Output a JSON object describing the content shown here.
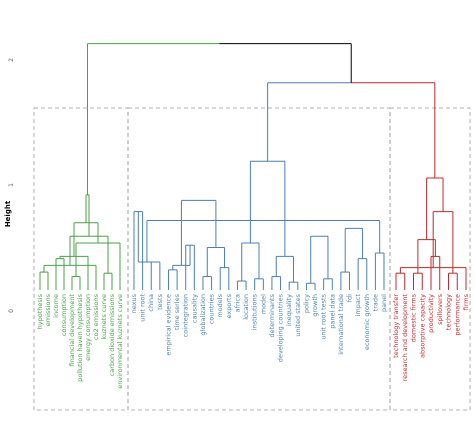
{
  "chart_data": {
    "type": "dendrogram",
    "ylabel": "Height",
    "y_ticks": [
      "0",
      "1",
      "2"
    ],
    "ylim": [
      0,
      2.3
    ],
    "grid": false,
    "colors": {
      "root": "#000000",
      "cluster_1": "#4aa04a",
      "cluster_2": "#4a7fb0",
      "cluster_3": "#c0282c",
      "box": "#9a9a9a"
    },
    "clusters": [
      {
        "id": "cluster_1",
        "leaves": [
          "hypothesis",
          "emissions",
          "income",
          "consumption",
          "financial development",
          "pollution haven hypothesis",
          "energy consumption",
          "co2 emissions",
          "kuznets curve",
          "carbon dioxide emissions",
          "environmental kuznets curve"
        ]
      },
      {
        "id": "cluster_2",
        "leaves": [
          "nexus",
          "unit root",
          "china",
          "tests",
          "empirical evidence",
          "time series",
          "cointegration",
          "causality",
          "globalization",
          "countries",
          "models",
          "exports",
          "africa",
          "location",
          "institutions",
          "model",
          "determinants",
          "developing countries",
          "inequality",
          "united states",
          "policy",
          "growth",
          "unit root tests",
          "panel data",
          "international trade",
          "fdi",
          "impact",
          "economic growth",
          "trade",
          "panel"
        ]
      },
      {
        "id": "cluster_3",
        "leaves": [
          "technology transfer",
          "research and development",
          "domestic firms",
          "absorptive capacity",
          "productivity",
          "spillovers",
          "technology",
          "performance",
          "firms"
        ]
      }
    ],
    "merges": [
      {
        "cluster": "cluster_1",
        "a": 0,
        "b": 1,
        "height": 0.16
      },
      {
        "cluster": "cluster_1",
        "a": 2,
        "b": 3,
        "height": 0.28
      },
      {
        "cluster": "cluster_1",
        "a": 4,
        "b": 5,
        "height": 0.12
      },
      {
        "cluster": "cluster_1",
        "a": 8,
        "b": 9,
        "height": 0.15
      },
      {
        "cluster": "cluster_1",
        "a": 7,
        "b": 11,
        "height": 0.22
      },
      {
        "cluster": "cluster_1",
        "a": 6,
        "b": 12,
        "height": 0.3
      },
      {
        "cluster": "cluster_1",
        "a": 13,
        "b": 10,
        "height": 0.42
      },
      {
        "cluster": "cluster_1",
        "a": 14,
        "b": 15,
        "height": 0.48
      },
      {
        "cluster": "cluster_1",
        "a": 16,
        "b": 17,
        "height": 0.6
      },
      {
        "cluster": "cluster_1",
        "a": 18,
        "b": 19,
        "height": 0.85
      },
      {
        "cluster": "cluster_2",
        "a": 0,
        "b": 1,
        "height": 0.7
      },
      {
        "cluster": "cluster_2",
        "a": 2,
        "b": 3,
        "height": 0.25
      },
      {
        "cluster": "cluster_2",
        "a": 4,
        "b": 5,
        "height": 0.18
      },
      {
        "cluster": "cluster_2",
        "a": 6,
        "b": 7,
        "height": 0.4
      },
      {
        "cluster": "cluster_2",
        "a": 8,
        "b": 9,
        "height": 0.12
      },
      {
        "cluster": "cluster_2",
        "a": 10,
        "b": 11,
        "height": 0.2
      },
      {
        "cluster": "cluster_2",
        "a": 12,
        "b": 13,
        "height": 0.08
      },
      {
        "cluster": "cluster_2",
        "a": 14,
        "b": 15,
        "height": 0.1
      },
      {
        "cluster": "cluster_2",
        "a": 16,
        "b": 17,
        "height": 0.12
      },
      {
        "cluster": "cluster_2",
        "a": 18,
        "b": 19,
        "height": 0.07
      },
      {
        "cluster": "cluster_2",
        "a": 20,
        "b": 21,
        "height": 0.06
      },
      {
        "cluster": "cluster_2",
        "a": 22,
        "b": 23,
        "height": 0.1
      },
      {
        "cluster": "cluster_2",
        "a": 24,
        "b": 25,
        "height": 0.16
      },
      {
        "cluster": "cluster_2",
        "a": 26,
        "b": 27,
        "height": 0.28
      },
      {
        "cluster": "cluster_2",
        "a": 28,
        "b": 29,
        "height": 0.33
      },
      {
        "cluster": "cluster_2",
        "a": 30,
        "b": 31,
        "height": 0.25
      },
      {
        "cluster": "cluster_2",
        "a": 32,
        "b": 33,
        "height": 0.22
      },
      {
        "cluster": "cluster_2",
        "a": 34,
        "b": 35,
        "height": 0.38
      },
      {
        "cluster": "cluster_2",
        "a": 36,
        "b": 37,
        "height": 0.42
      },
      {
        "cluster": "cluster_2",
        "a": 38,
        "b": 39,
        "height": 0.3
      },
      {
        "cluster": "cluster_2",
        "a": 40,
        "b": 41,
        "height": 0.48
      },
      {
        "cluster": "cluster_2",
        "a": 42,
        "b": 43,
        "height": 0.55
      },
      {
        "cluster": "cluster_2",
        "a": 44,
        "b": 45,
        "height": 0.62
      },
      {
        "cluster": "cluster_2",
        "a": 46,
        "b": 47,
        "height": 0.8
      },
      {
        "cluster": "cluster_2",
        "a": 48,
        "b": 49,
        "height": 1.15
      },
      {
        "cluster": "cluster_3",
        "a": 0,
        "b": 1,
        "height": 0.15
      },
      {
        "cluster": "cluster_3",
        "a": 2,
        "b": 3,
        "height": 0.15
      },
      {
        "cluster": "cluster_3",
        "a": 4,
        "b": 5,
        "height": 0.3
      },
      {
        "cluster": "cluster_3",
        "a": 6,
        "b": 7,
        "height": 0.15
      },
      {
        "cluster": "cluster_3",
        "a": 8,
        "b": 9,
        "height": 0.2
      },
      {
        "cluster": "cluster_3",
        "a": 10,
        "b": 11,
        "height": 0.45
      },
      {
        "cluster": "cluster_3",
        "a": 12,
        "b": 13,
        "height": 0.7
      },
      {
        "cluster": "cluster_3",
        "a": 14,
        "b": 15,
        "height": 1.0
      }
    ],
    "top_merges": [
      {
        "a": "cluster_2",
        "b": "cluster_3",
        "height": 1.85,
        "color": "cluster_3_bridge"
      },
      {
        "a": "cluster_1",
        "b": "cluster_23",
        "height": 2.2,
        "color": "root"
      }
    ]
  }
}
